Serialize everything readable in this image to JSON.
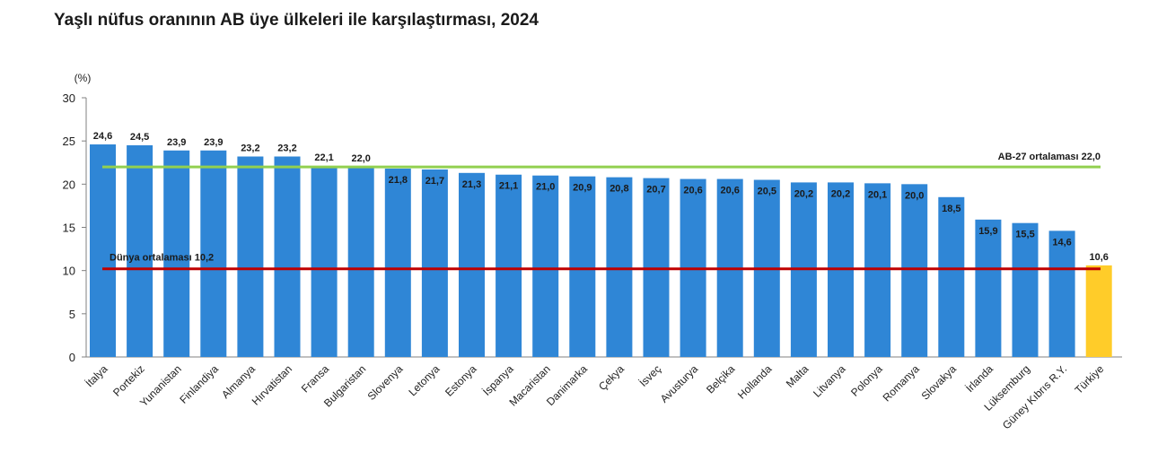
{
  "chart_data": {
    "type": "bar",
    "title": "Yaşlı nüfus oranının AB üye ülkeleri ile karşılaştırması, 2024",
    "unit_label": "(%)",
    "categories": [
      "İtalya",
      "Portekiz",
      "Yunanistan",
      "Finlandiya",
      "Almanya",
      "Hırvatistan",
      "Fransa",
      "Bulgaristan",
      "Slovenya",
      "Letonya",
      "Estonya",
      "İspanya",
      "Macaristan",
      "Danimarka",
      "Çekya",
      "İsveç",
      "Avusturya",
      "Belçika",
      "Hollanda",
      "Malta",
      "Litvanya",
      "Polonya",
      "Romanya",
      "Slovakya",
      "İrlanda",
      "Lüksemburg",
      "Güney Kıbrıs R.Y.",
      "Türkiye"
    ],
    "values": [
      24.6,
      24.5,
      23.9,
      23.9,
      23.2,
      23.2,
      22.1,
      22.0,
      21.8,
      21.7,
      21.3,
      21.1,
      21.0,
      20.9,
      20.8,
      20.7,
      20.6,
      20.6,
      20.5,
      20.2,
      20.2,
      20.1,
      20.0,
      18.5,
      15.9,
      15.5,
      14.6,
      10.6
    ],
    "value_labels": [
      "24,6",
      "24,5",
      "23,9",
      "23,9",
      "23,2",
      "23,2",
      "22,1",
      "22,0",
      "21,8",
      "21,7",
      "21,3",
      "21,1",
      "21,0",
      "20,9",
      "20,8",
      "20,7",
      "20,6",
      "20,6",
      "20,5",
      "20,2",
      "20,2",
      "20,1",
      "20,0",
      "18,5",
      "15,9",
      "15,5",
      "14,6",
      "10,6"
    ],
    "highlight_category": "Türkiye",
    "ylim": [
      0,
      30
    ],
    "yticks": [
      0,
      5,
      10,
      15,
      20,
      25,
      30
    ],
    "grid": false,
    "colors": {
      "bar": "#2f86d6",
      "highlight": "#ffcc29",
      "eu_line": "#92d050",
      "world_line": "#c00000"
    },
    "reference_lines": [
      {
        "value": 22.0,
        "label": "AB-27 ortalaması  22,0",
        "color": "#92d050"
      },
      {
        "value": 10.2,
        "label": "Dünya ortalaması  10,2",
        "color": "#c00000"
      }
    ]
  }
}
